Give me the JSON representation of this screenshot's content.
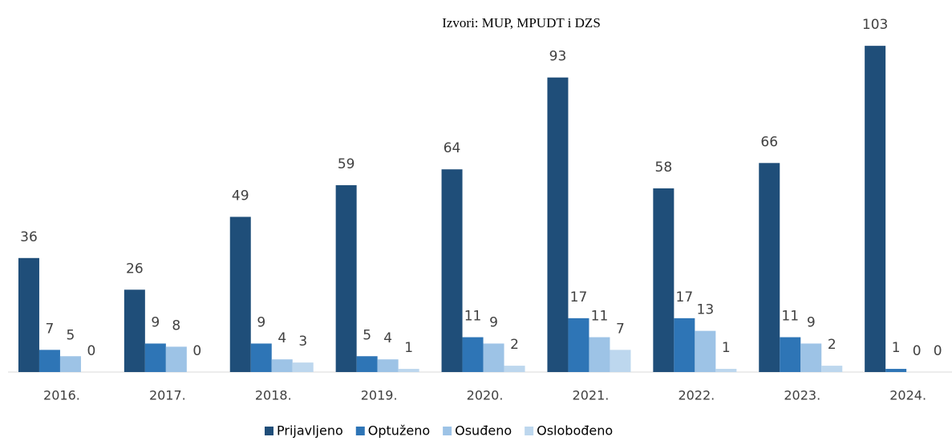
{
  "chart_data": {
    "type": "bar",
    "title": "Izvori: MUP, MPUDT i DZS",
    "categories": [
      "2016.",
      "2017.",
      "2018.",
      "2019.",
      "2020.",
      "2021.",
      "2022.",
      "2023.",
      "2024."
    ],
    "series": [
      {
        "name": "Prijavljeno",
        "color": "#1f4e79",
        "values": [
          36,
          26,
          49,
          59,
          64,
          93,
          58,
          66,
          103
        ]
      },
      {
        "name": "Optuženo",
        "color": "#2e75b6",
        "values": [
          7,
          9,
          9,
          5,
          11,
          17,
          17,
          11,
          1
        ]
      },
      {
        "name": "Osuđeno",
        "color": "#9dc3e6",
        "values": [
          5,
          8,
          4,
          4,
          9,
          11,
          13,
          9,
          0
        ]
      },
      {
        "name": "Oslobođeno",
        "color": "#bdd7ee",
        "values": [
          0,
          0,
          3,
          1,
          2,
          7,
          1,
          2,
          0
        ]
      }
    ],
    "ylim": [
      0,
      110
    ],
    "legend": "bottom"
  }
}
